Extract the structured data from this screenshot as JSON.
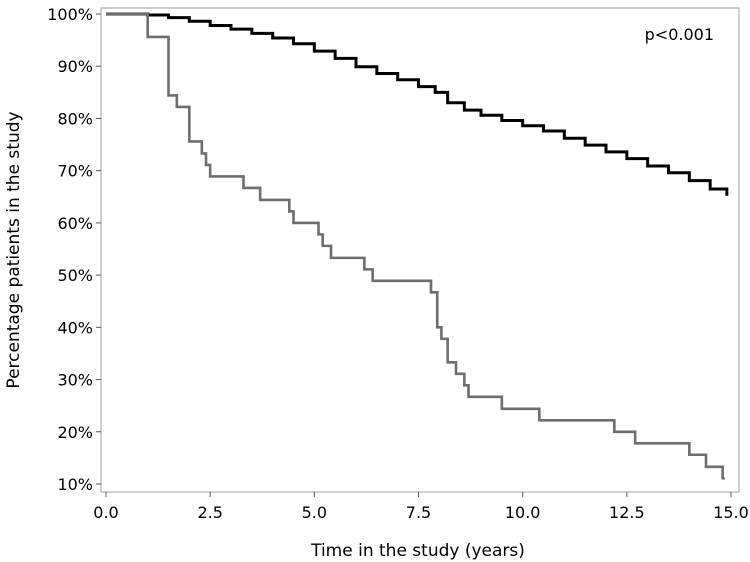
{
  "chart_data": {
    "type": "line",
    "title": "",
    "xlabel": "Time in the study (years)",
    "ylabel": "Percentage patients in the study",
    "xlim": [
      0,
      15
    ],
    "ylim": [
      10,
      100
    ],
    "x_ticks": [
      "0.0",
      "2.5",
      "5.0",
      "7.5",
      "10.0",
      "12.5",
      "15.0"
    ],
    "x_tick_values": [
      0,
      2.5,
      5,
      7.5,
      10,
      12.5,
      15
    ],
    "y_ticks": [
      "10%",
      "20%",
      "30%",
      "40%",
      "50%",
      "60%",
      "70%",
      "80%",
      "90%",
      "100%"
    ],
    "y_tick_values": [
      10,
      20,
      30,
      40,
      50,
      60,
      70,
      80,
      90,
      100
    ],
    "grid": false,
    "annotation": "p<0.001",
    "series": [
      {
        "color": "#000000",
        "step": true,
        "points": [
          [
            0,
            100
          ],
          [
            1,
            99.8
          ],
          [
            1.5,
            99.3
          ],
          [
            2,
            98.6
          ],
          [
            2.5,
            97.8
          ],
          [
            3,
            97.1
          ],
          [
            3.5,
            96.3
          ],
          [
            4,
            95.4
          ],
          [
            4.5,
            94.3
          ],
          [
            5,
            92.9
          ],
          [
            5.5,
            91.5
          ],
          [
            6,
            89.9
          ],
          [
            6.5,
            88.6
          ],
          [
            7,
            87.4
          ],
          [
            7.5,
            86.1
          ],
          [
            7.9,
            85.0
          ],
          [
            8.2,
            83.0
          ],
          [
            8.6,
            81.6
          ],
          [
            9,
            80.6
          ],
          [
            9.5,
            79.6
          ],
          [
            10,
            78.6
          ],
          [
            10.5,
            77.6
          ],
          [
            11,
            76.2
          ],
          [
            11.5,
            74.9
          ],
          [
            12,
            73.6
          ],
          [
            12.5,
            72.3
          ],
          [
            13,
            70.9
          ],
          [
            13.5,
            69.6
          ],
          [
            14,
            68.1
          ],
          [
            14.5,
            66.5
          ],
          [
            14.9,
            65.2
          ]
        ]
      },
      {
        "color": "#6e6e6e",
        "step": true,
        "points": [
          [
            0,
            100
          ],
          [
            1,
            95.6
          ],
          [
            1.5,
            84.4
          ],
          [
            1.7,
            82.2
          ],
          [
            2,
            75.6
          ],
          [
            2.3,
            73.3
          ],
          [
            2.4,
            71.1
          ],
          [
            2.5,
            68.9
          ],
          [
            3.3,
            66.7
          ],
          [
            3.7,
            64.4
          ],
          [
            4.4,
            62.2
          ],
          [
            4.5,
            60.0
          ],
          [
            5.1,
            57.8
          ],
          [
            5.2,
            55.6
          ],
          [
            5.4,
            53.3
          ],
          [
            6.2,
            51.1
          ],
          [
            6.4,
            48.9
          ],
          [
            7.8,
            46.7
          ],
          [
            7.95,
            40.0
          ],
          [
            8.05,
            37.8
          ],
          [
            8.2,
            33.3
          ],
          [
            8.4,
            31.1
          ],
          [
            8.6,
            28.9
          ],
          [
            8.7,
            26.7
          ],
          [
            9.5,
            24.4
          ],
          [
            10.4,
            22.2
          ],
          [
            12.2,
            20.0
          ],
          [
            12.7,
            17.8
          ],
          [
            14.0,
            15.6
          ],
          [
            14.4,
            13.3
          ],
          [
            14.8,
            11.1
          ]
        ],
        "end_x": 14.85
      }
    ]
  }
}
